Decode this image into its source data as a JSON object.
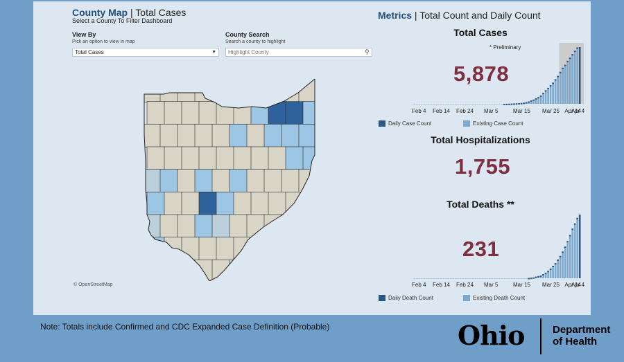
{
  "map_panel": {
    "title_accent": "County Map",
    "title_sep": " | ",
    "title_rest": "Total Cases",
    "subtitle": "Select a County To Filter Dashboard",
    "view_by_label": "View By",
    "view_by_hint": "Pick an option to view in map",
    "view_by_value": "Total Cases",
    "search_label": "County Search",
    "search_hint": "Search a county to highlight",
    "search_placeholder": "Highlight County",
    "attribution": "© OpenStreetMap",
    "colors": {
      "base": "#d8d5c7",
      "light": "#bcd0dc",
      "mid": "#9cc6e3",
      "dark": "#2f629b",
      "border": "#222222"
    }
  },
  "metrics": {
    "title_accent": "Metrics",
    "title_sep": " | ",
    "title_rest": "Total Count and Daily Count",
    "total_cases": {
      "label": "Total Cases",
      "value": "5,878",
      "preliminary_note": "* Preliminary"
    },
    "total_hospitalizations": {
      "label": "Total Hospitalizations",
      "value": "1,755"
    },
    "total_deaths": {
      "label": "Total Deaths **",
      "value": "231"
    },
    "legend_cases": {
      "daily": "Daily Case Count",
      "existing": "Existing Case Count"
    },
    "legend_deaths": {
      "daily": "Daily Death Count",
      "existing": "Existing Death Count"
    },
    "colors": {
      "daily": "#2a5784",
      "existing": "#7ea9cf",
      "value": "#7d2e3f",
      "preliminary_band": "#cccccc"
    }
  },
  "chart_data": [
    {
      "type": "bar",
      "title": "Total Cases",
      "x_tick_labels": [
        "Feb 4",
        "Feb 14",
        "Feb 24",
        "Mar 5",
        "Mar 15",
        "Mar 25",
        "Apr 4",
        "Apr 14"
      ],
      "series": [
        {
          "name": "Existing Case Count",
          "values": [
            0,
            0,
            0,
            0,
            0,
            0,
            0,
            0,
            0,
            0,
            0,
            0,
            0,
            0,
            0,
            0,
            0,
            0,
            0,
            0,
            0,
            0,
            0,
            0,
            0,
            0,
            0,
            0,
            0,
            0,
            0,
            0,
            0,
            0,
            0,
            0,
            0,
            3,
            5,
            13,
            26,
            37,
            50,
            67,
            86,
            119,
            169,
            247,
            351,
            442,
            564,
            704,
            867,
            1137,
            1406,
            1653,
            1933,
            2199,
            2547,
            2902,
            3312,
            3739,
            4043,
            4450,
            4782,
            5148,
            5512,
            5836,
            5878
          ]
        }
      ],
      "preliminary_from_index": 60
    },
    {
      "type": "bar",
      "title": "Total Deaths **",
      "x_tick_labels": [
        "Feb 4",
        "Feb 14",
        "Feb 24",
        "Mar 5",
        "Mar 15",
        "Mar 25",
        "Apr 4",
        "Apr 14"
      ],
      "series": [
        {
          "name": "Existing Death Count",
          "values": [
            0,
            0,
            0,
            0,
            0,
            0,
            0,
            0,
            0,
            0,
            0,
            0,
            0,
            0,
            0,
            0,
            0,
            0,
            0,
            0,
            0,
            0,
            0,
            0,
            0,
            0,
            0,
            0,
            0,
            0,
            0,
            0,
            0,
            0,
            0,
            0,
            0,
            0,
            0,
            0,
            0,
            0,
            0,
            0,
            0,
            0,
            0,
            1,
            2,
            3,
            6,
            8,
            10,
            15,
            20,
            27,
            35,
            45,
            55,
            68,
            81,
            97,
            115,
            135,
            157,
            180,
            199,
            219,
            231
          ]
        }
      ]
    }
  ],
  "footer": {
    "note": "Note: Totals include Confirmed and CDC Expanded Case Definition (Probable)",
    "logo_word": "Ohio",
    "dept_line1": "Department",
    "dept_line2": "of Health"
  }
}
